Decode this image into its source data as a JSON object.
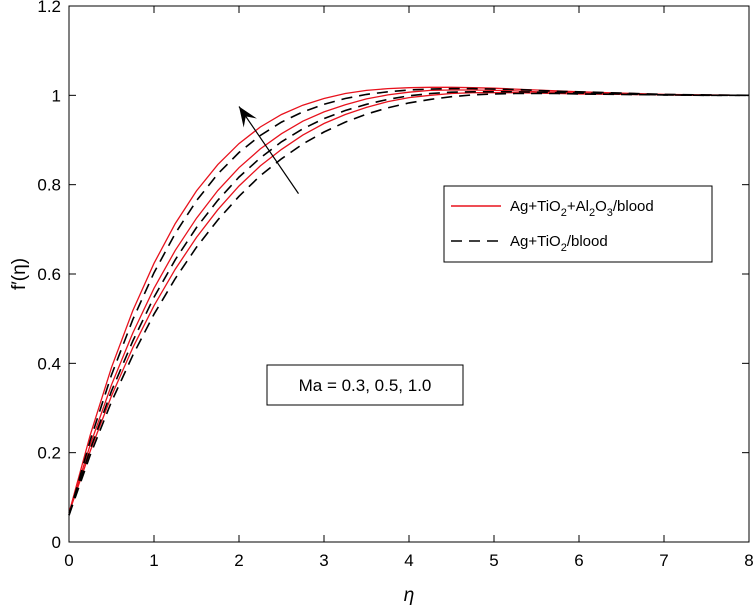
{
  "chart_data": {
    "type": "line",
    "xlabel": "η",
    "ylabel": "f′(η)",
    "xlim": [
      0,
      8
    ],
    "ylim": [
      0,
      1.2
    ],
    "xticks": [
      "0",
      "1",
      "2",
      "3",
      "4",
      "5",
      "6",
      "7",
      "8"
    ],
    "yticks": [
      "0",
      "0.2",
      "0.4",
      "0.6",
      "0.8",
      "1",
      "1.2"
    ],
    "grid": false,
    "legend_position": "right",
    "legend": [
      {
        "label": "Ag+TiO2+Al2O3/blood",
        "style": "solid",
        "color": "#e8121d"
      },
      {
        "label": "Ag+TiO2/blood",
        "style": "dashed",
        "color": "#000000"
      }
    ],
    "annotation": "Ma = 0.3, 0.5, 1.0",
    "arrow": {
      "from": [
        2.7,
        0.78
      ],
      "to": [
        2.0,
        0.975
      ]
    },
    "x": [
      0,
      0.25,
      0.5,
      0.75,
      1,
      1.25,
      1.5,
      1.75,
      2,
      2.25,
      2.5,
      2.75,
      3,
      3.25,
      3.5,
      3.75,
      4,
      4.25,
      4.5,
      4.75,
      5,
      5.25,
      5.5,
      5.75,
      6,
      6.5,
      7,
      7.5,
      8
    ],
    "series": [
      {
        "group": "Ag+TiO2+Al2O3/blood",
        "Ma": "0.3",
        "style": "solid",
        "color": "#e8121d",
        "values": [
          0.065,
          0.204,
          0.327,
          0.435,
          0.529,
          0.611,
          0.682,
          0.744,
          0.797,
          0.842,
          0.879,
          0.911,
          0.937,
          0.957,
          0.973,
          0.986,
          0.995,
          1.0,
          1.004,
          1.006,
          1.006,
          1.006,
          1.005,
          1.004,
          1.003,
          1.002,
          1.001,
          1.0,
          1.0
        ]
      },
      {
        "group": "Ag+TiO2+Al2O3/blood",
        "Ma": "0.5",
        "style": "solid",
        "color": "#e8121d",
        "values": [
          0.065,
          0.218,
          0.352,
          0.468,
          0.568,
          0.653,
          0.725,
          0.787,
          0.838,
          0.88,
          0.914,
          0.942,
          0.963,
          0.979,
          0.992,
          1.001,
          1.007,
          1.011,
          1.012,
          1.012,
          1.011,
          1.01,
          1.008,
          1.007,
          1.005,
          1.003,
          1.001,
          1.0,
          1.0
        ]
      },
      {
        "group": "Ag+TiO2+Al2O3/blood",
        "Ma": "1.0",
        "style": "solid",
        "color": "#e8121d",
        "values": [
          0.065,
          0.24,
          0.391,
          0.518,
          0.624,
          0.713,
          0.786,
          0.845,
          0.892,
          0.929,
          0.957,
          0.978,
          0.993,
          1.004,
          1.011,
          1.015,
          1.017,
          1.018,
          1.018,
          1.017,
          1.016,
          1.014,
          1.012,
          1.01,
          1.008,
          1.005,
          1.002,
          1.001,
          1.0
        ]
      },
      {
        "group": "Ag+TiO2/blood",
        "Ma": "0.3",
        "style": "dashed",
        "color": "#000000",
        "values": [
          0.06,
          0.195,
          0.314,
          0.418,
          0.51,
          0.59,
          0.66,
          0.721,
          0.774,
          0.82,
          0.858,
          0.891,
          0.918,
          0.94,
          0.958,
          0.972,
          0.983,
          0.991,
          0.997,
          1.001,
          1.003,
          1.004,
          1.004,
          1.004,
          1.003,
          1.002,
          1.001,
          1.0,
          1.0
        ]
      },
      {
        "group": "Ag+TiO2/blood",
        "Ma": "0.5",
        "style": "dashed",
        "color": "#000000",
        "values": [
          0.06,
          0.208,
          0.338,
          0.45,
          0.548,
          0.632,
          0.704,
          0.765,
          0.817,
          0.86,
          0.896,
          0.925,
          0.948,
          0.966,
          0.98,
          0.991,
          0.999,
          1.004,
          1.007,
          1.008,
          1.008,
          1.008,
          1.007,
          1.006,
          1.005,
          1.003,
          1.001,
          1.0,
          1.0
        ]
      },
      {
        "group": "Ag+TiO2/blood",
        "Ma": "1.0",
        "style": "dashed",
        "color": "#000000",
        "values": [
          0.06,
          0.228,
          0.374,
          0.498,
          0.603,
          0.691,
          0.764,
          0.824,
          0.872,
          0.91,
          0.94,
          0.963,
          0.98,
          0.993,
          1.002,
          1.008,
          1.012,
          1.014,
          1.015,
          1.015,
          1.014,
          1.013,
          1.011,
          1.009,
          1.008,
          1.005,
          1.002,
          1.001,
          1.0
        ]
      }
    ]
  }
}
